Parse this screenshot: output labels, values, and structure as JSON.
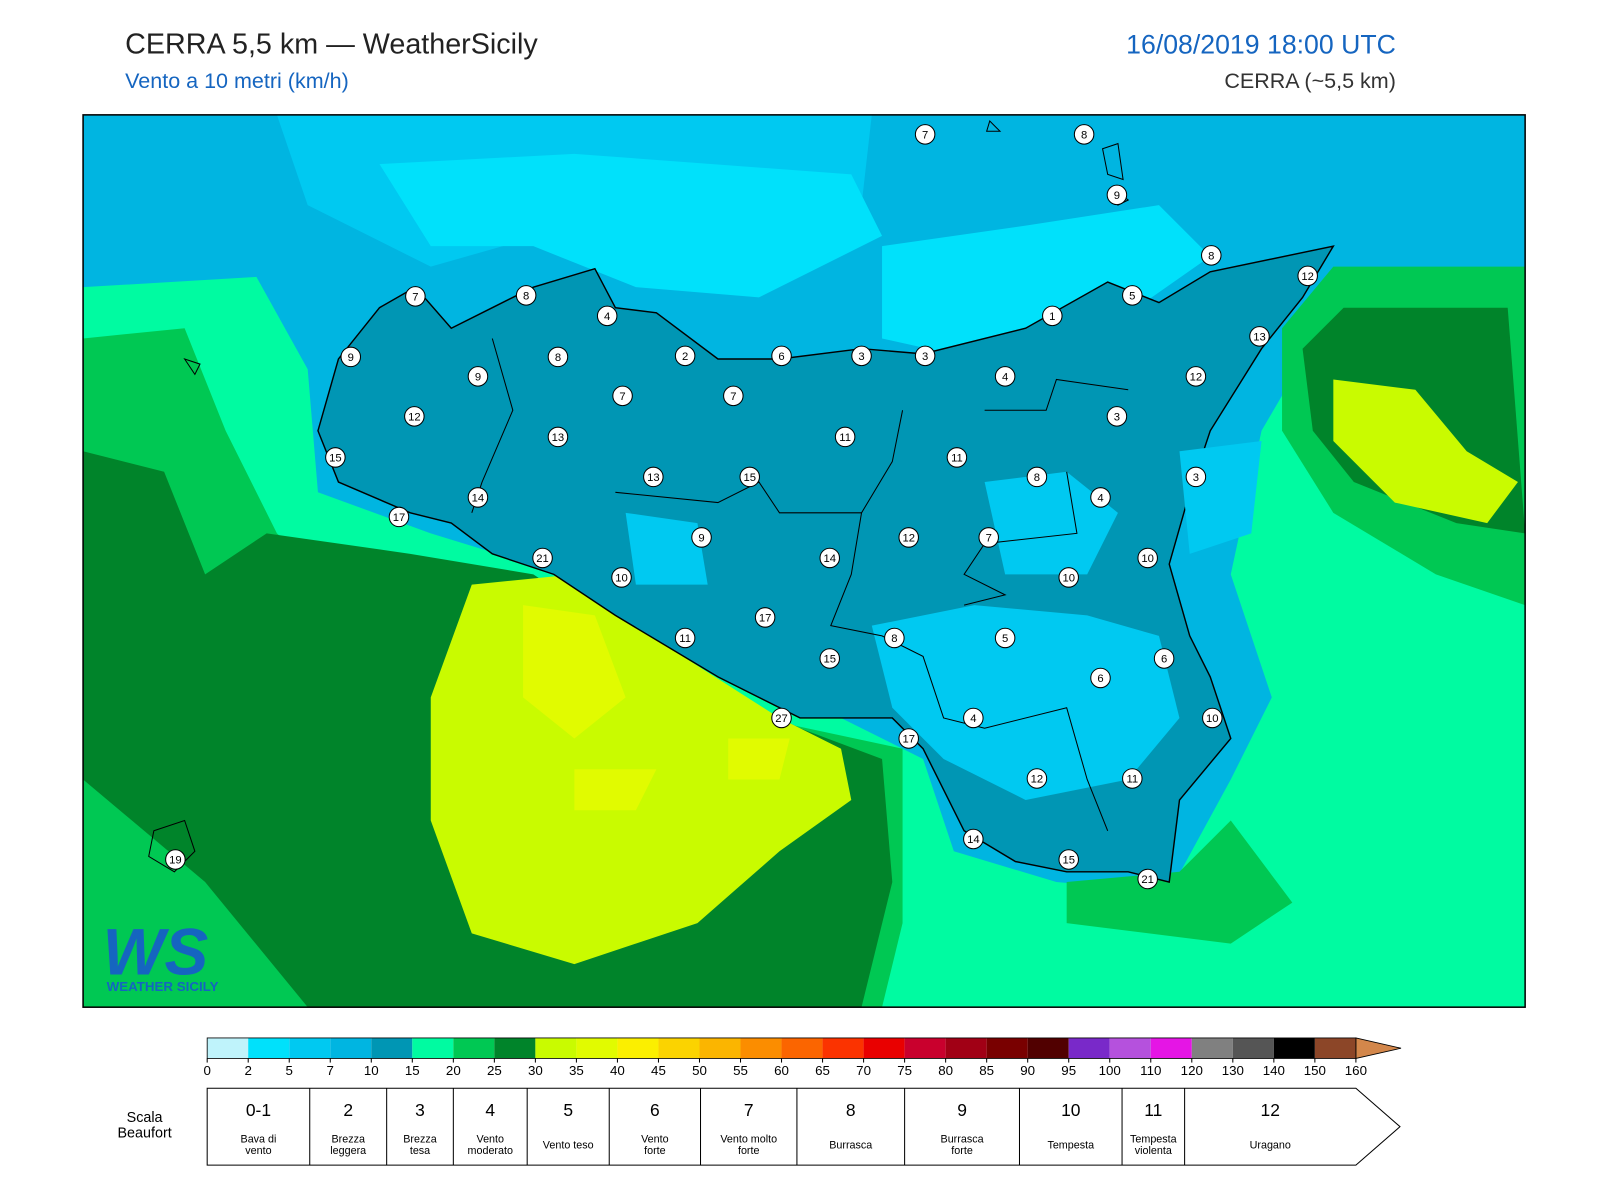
{
  "header": {
    "title": "CERRA 5,5 km — WeatherSicily",
    "subtitle": "Vento a 10 metri (km/h)",
    "datetime": "16/08/2019 18:00 UTC",
    "model": "CERRA (~5,5 km)"
  },
  "logo": {
    "mark": "WS",
    "text": "WEATHER SICILY"
  },
  "stations": [
    7,
    8,
    9,
    8,
    12,
    5,
    7,
    8,
    4,
    1,
    13,
    9,
    8,
    2,
    6,
    3,
    3,
    9,
    4,
    12,
    7,
    7,
    12,
    3,
    13,
    11,
    11,
    15,
    13,
    15,
    8,
    3,
    14,
    4,
    17,
    9,
    12,
    7,
    21,
    14,
    10,
    10,
    10,
    17,
    11,
    8,
    5,
    15,
    6,
    6,
    27,
    4,
    10,
    17,
    12,
    11,
    14,
    15,
    21,
    19
  ],
  "colorbar": {
    "ticks": [
      0,
      2,
      5,
      7,
      10,
      15,
      20,
      25,
      30,
      35,
      40,
      45,
      50,
      55,
      60,
      65,
      70,
      75,
      80,
      85,
      90,
      95,
      100,
      110,
      120,
      130,
      140,
      150,
      160
    ],
    "colors": [
      "#bff3fb",
      "#00e1fb",
      "#00c9f1",
      "#00b5e1",
      "#0096b4",
      "#00fba1",
      "#00c853",
      "#00842a",
      "#c9fb00",
      "#e1fb00",
      "#fbef00",
      "#fbd300",
      "#fbb500",
      "#fb8d00",
      "#fb6500",
      "#fb3300",
      "#e90000",
      "#c9002d",
      "#a10015",
      "#790000",
      "#510000",
      "#7929c9",
      "#b551dd",
      "#e515e5",
      "#808080",
      "#555555",
      "#000000",
      "#8c4628"
    ],
    "extend_color": "#d3874b"
  },
  "beaufort": {
    "title": [
      "Scala",
      "Beaufort"
    ],
    "levels": [
      {
        "force": "0-1",
        "desc": [
          "Bava di",
          "vento"
        ]
      },
      {
        "force": "2",
        "desc": [
          "Brezza",
          "leggera"
        ]
      },
      {
        "force": "3",
        "desc": [
          "Brezza",
          "tesa"
        ]
      },
      {
        "force": "4",
        "desc": [
          "Vento",
          "moderato"
        ]
      },
      {
        "force": "5",
        "desc": [
          "Vento teso"
        ]
      },
      {
        "force": "6",
        "desc": [
          "Vento",
          "forte"
        ]
      },
      {
        "force": "7",
        "desc": [
          "Vento molto",
          "forte"
        ]
      },
      {
        "force": "8",
        "desc": [
          "Burrasca"
        ]
      },
      {
        "force": "9",
        "desc": [
          "Burrasca",
          "forte"
        ]
      },
      {
        "force": "10",
        "desc": [
          "Tempesta"
        ]
      },
      {
        "force": "11",
        "desc": [
          "Tempesta",
          "violenta"
        ]
      },
      {
        "force": "12",
        "desc": [
          "Uragano"
        ]
      }
    ]
  }
}
